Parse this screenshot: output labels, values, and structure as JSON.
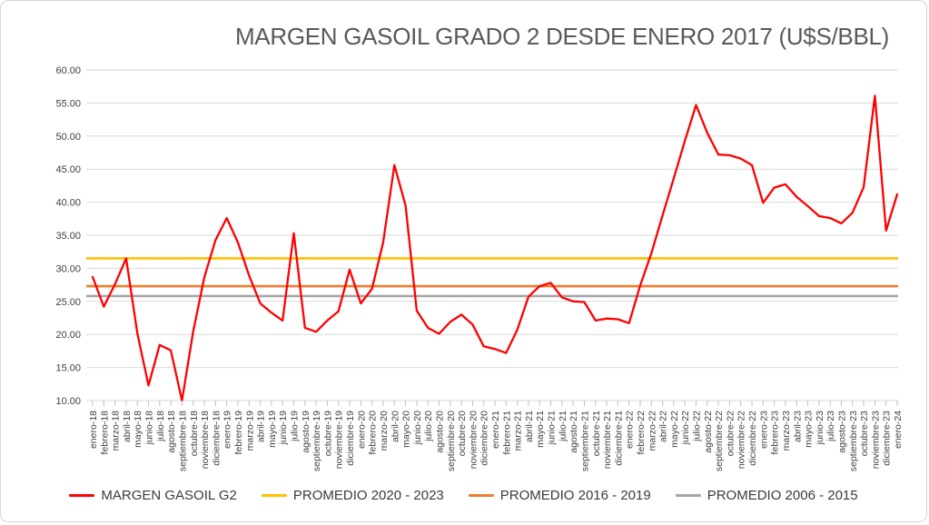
{
  "chart_data": {
    "type": "line",
    "title": "MARGEN GASOIL GRADO 2 DESDE ENERO 2017 (U$S/BBL)",
    "xlabel": "",
    "ylabel": "",
    "grid": true,
    "legend_position": "bottom",
    "y_axis": {
      "min": 10,
      "max": 60,
      "step": 5,
      "tick_labels": [
        "10.00",
        "15.00",
        "20.00",
        "25.00",
        "30.00",
        "35.00",
        "40.00",
        "45.00",
        "50.00",
        "55.00",
        "60.00"
      ]
    },
    "x_labels": [
      "enero-18",
      "febrero-18",
      "marzo-18",
      "abril-18",
      "mayo-18",
      "junio-18",
      "julio-18",
      "agosto-18",
      "septiembre-18",
      "octubre-18",
      "noviembre-18",
      "diciembre-18",
      "enero-19",
      "febrero-19",
      "marzo-19",
      "abril-19",
      "mayo-19",
      "junio-19",
      "julio-19",
      "agosto-19",
      "septiembre-19",
      "octubre-19",
      "noviembre-19",
      "diciembre-19",
      "enero-20",
      "febrero-20",
      "marzo-20",
      "abril-20",
      "mayo-20",
      "junio-20",
      "julio-20",
      "agosto-20",
      "septiembre-20",
      "octubre-20",
      "noviembre-20",
      "diciembre-20",
      "enero-21",
      "febrero-21",
      "marzo-21",
      "abril-21",
      "mayo-21",
      "junio-21",
      "julio-21",
      "agosto-21",
      "septiembre-21",
      "octubre-21",
      "noviembre-21",
      "diciembre-21",
      "enero-22",
      "febrero-22",
      "marzo-22",
      "abril-22",
      "mayo-22",
      "junio-22",
      "julio-22",
      "agosto-22",
      "septiembre-22",
      "octubre-22",
      "noviembre-22",
      "diciembre-22",
      "enero-23",
      "febrero-23",
      "marzo-23",
      "abril-23",
      "mayo-23",
      "junio-23",
      "julio-23",
      "agosto-23",
      "septiembre-23",
      "octubre-23",
      "noviembre-23",
      "diciembre-23",
      "enero-24"
    ],
    "series": [
      {
        "name": "MARGEN GASOIL G2",
        "color": "#FF0000",
        "values": [
          28.7,
          24.2,
          27.6,
          31.5,
          20.2,
          12.3,
          18.4,
          17.6,
          10.0,
          20.5,
          28.7,
          34.3,
          37.6,
          33.9,
          28.9,
          24.7,
          23.3,
          22.1,
          35.3,
          21.0,
          20.4,
          22.1,
          23.5,
          29.8,
          24.7,
          26.9,
          33.9,
          45.6,
          39.5,
          23.6,
          21.0,
          20.1,
          21.9,
          23.0,
          21.5,
          18.2,
          17.8,
          17.2,
          20.7,
          25.7,
          27.3,
          27.8,
          25.6,
          25.0,
          24.9,
          22.1,
          22.4,
          22.3,
          21.7,
          27.4,
          32.3,
          38.0,
          43.6,
          49.3,
          54.7,
          50.5,
          47.2,
          47.1,
          46.6,
          45.6,
          39.9,
          42.2,
          42.7,
          40.8,
          39.4,
          37.9,
          37.6,
          36.8,
          38.4,
          42.3,
          56.1,
          35.7,
          41.2
        ]
      }
    ],
    "reference_lines": [
      {
        "name": "PROMEDIO 2020 - 2023",
        "color": "#FFC000",
        "value": 31.5
      },
      {
        "name": "PROMEDIO 2016 - 2019",
        "color": "#ED7D31",
        "value": 27.3
      },
      {
        "name": "PROMEDIO 2006 - 2015",
        "color": "#A6A6A6",
        "value": 25.8
      }
    ],
    "legend": [
      {
        "label": "MARGEN GASOIL G2",
        "color": "#FF0000"
      },
      {
        "label": "PROMEDIO 2020 - 2023",
        "color": "#FFC000"
      },
      {
        "label": "PROMEDIO 2016 - 2019",
        "color": "#ED7D31"
      },
      {
        "label": "PROMEDIO 2006 - 2015",
        "color": "#A6A6A6"
      }
    ],
    "style_colors": {
      "gridline": "#D9D9D9",
      "axis_tick": "#BFBFBF",
      "axis_text": "#404040",
      "title_text": "#595959"
    }
  }
}
